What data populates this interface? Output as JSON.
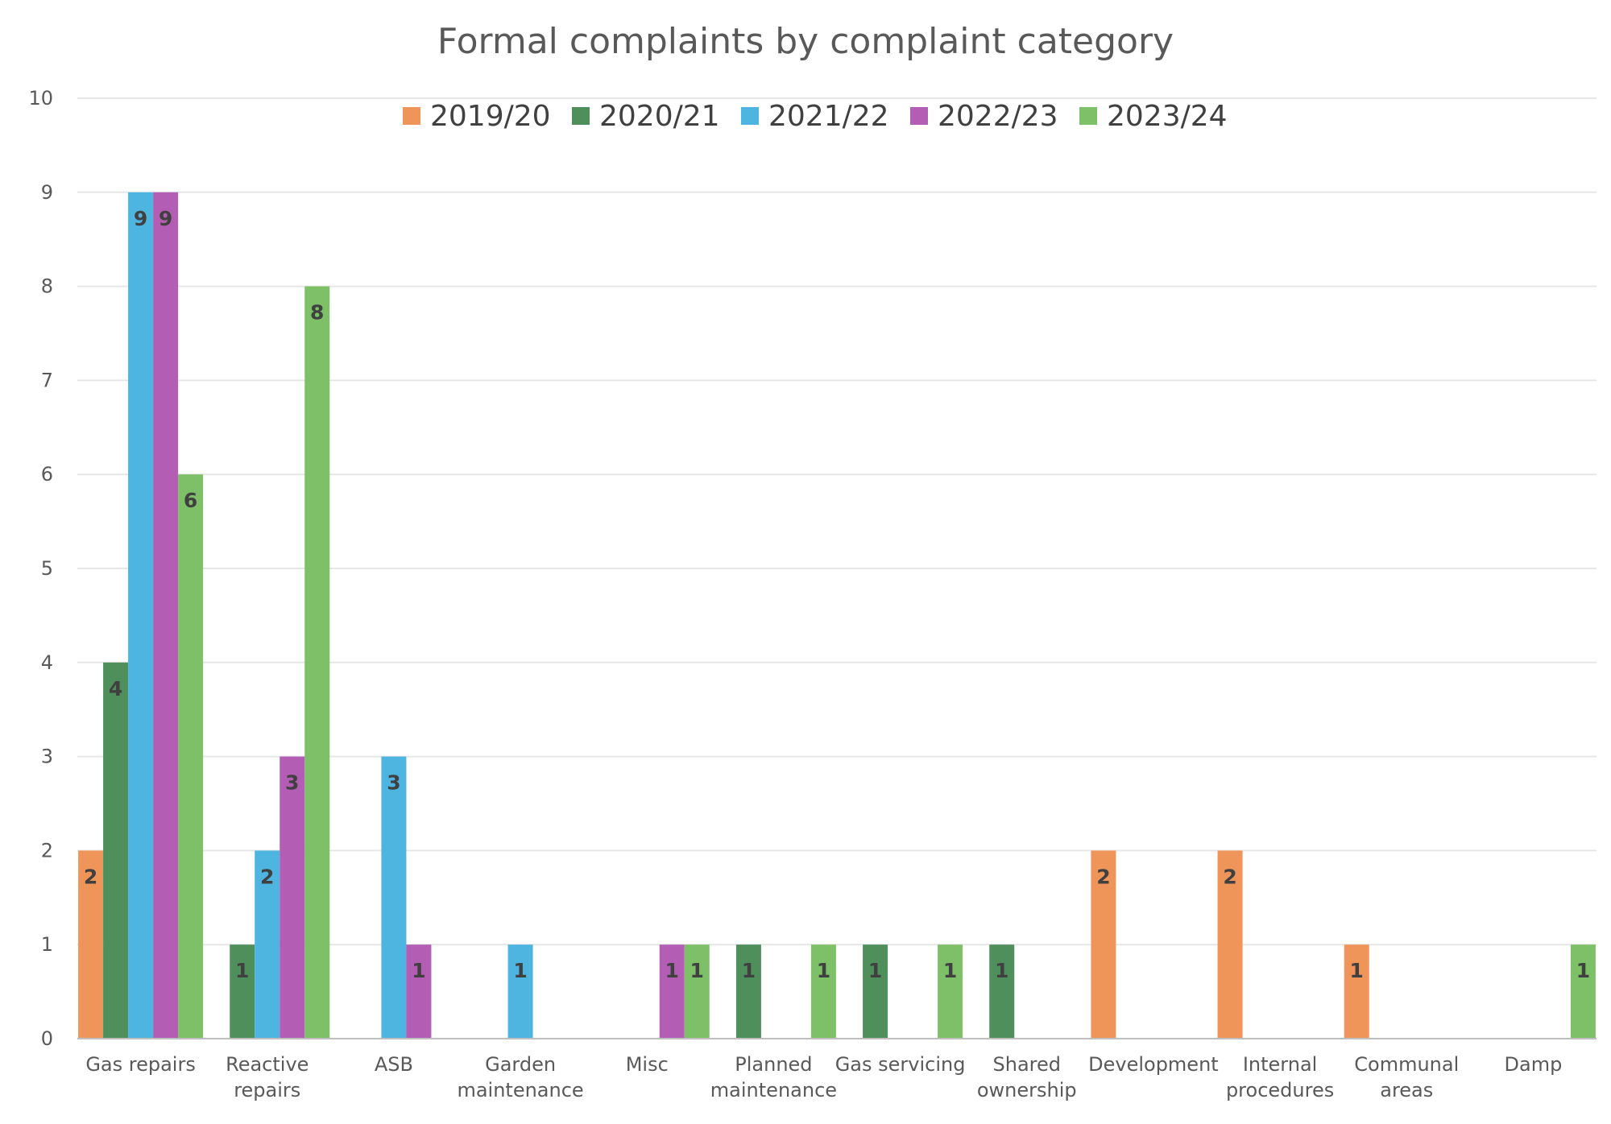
{
  "chart_data": {
    "type": "bar",
    "title": "Formal complaints by complaint category",
    "xlabel": "",
    "ylabel": "",
    "ylim": [
      0,
      10
    ],
    "yticks": [
      0,
      1,
      2,
      3,
      4,
      5,
      6,
      7,
      8,
      9,
      10
    ],
    "grid": true,
    "legend_position": "top",
    "categories": [
      [
        "Gas repairs"
      ],
      [
        "Reactive",
        "repairs"
      ],
      [
        "ASB"
      ],
      [
        "Garden",
        "maintenance"
      ],
      [
        "Misc"
      ],
      [
        "Planned",
        "maintenance"
      ],
      [
        "Gas servicing"
      ],
      [
        "Shared",
        "ownership"
      ],
      [
        "Development"
      ],
      [
        "Internal",
        "procedures"
      ],
      [
        "Communal",
        "areas"
      ],
      [
        "Damp"
      ]
    ],
    "series": [
      {
        "name": "2019/20",
        "color": "#f0955a",
        "values": [
          2,
          null,
          null,
          null,
          null,
          null,
          null,
          null,
          2,
          2,
          1,
          null
        ]
      },
      {
        "name": "2020/21",
        "color": "#4f8f5b",
        "values": [
          4,
          1,
          null,
          null,
          null,
          1,
          1,
          1,
          null,
          null,
          null,
          null
        ]
      },
      {
        "name": "2021/22",
        "color": "#4db5e0",
        "values": [
          9,
          2,
          3,
          1,
          null,
          null,
          null,
          null,
          null,
          null,
          null,
          null
        ]
      },
      {
        "name": "2022/23",
        "color": "#b45db5",
        "values": [
          9,
          3,
          1,
          null,
          1,
          null,
          null,
          null,
          null,
          null,
          null,
          null
        ]
      },
      {
        "name": "2023/24",
        "color": "#7dc067",
        "values": [
          6,
          8,
          null,
          null,
          1,
          1,
          1,
          null,
          null,
          null,
          null,
          1
        ]
      }
    ]
  }
}
